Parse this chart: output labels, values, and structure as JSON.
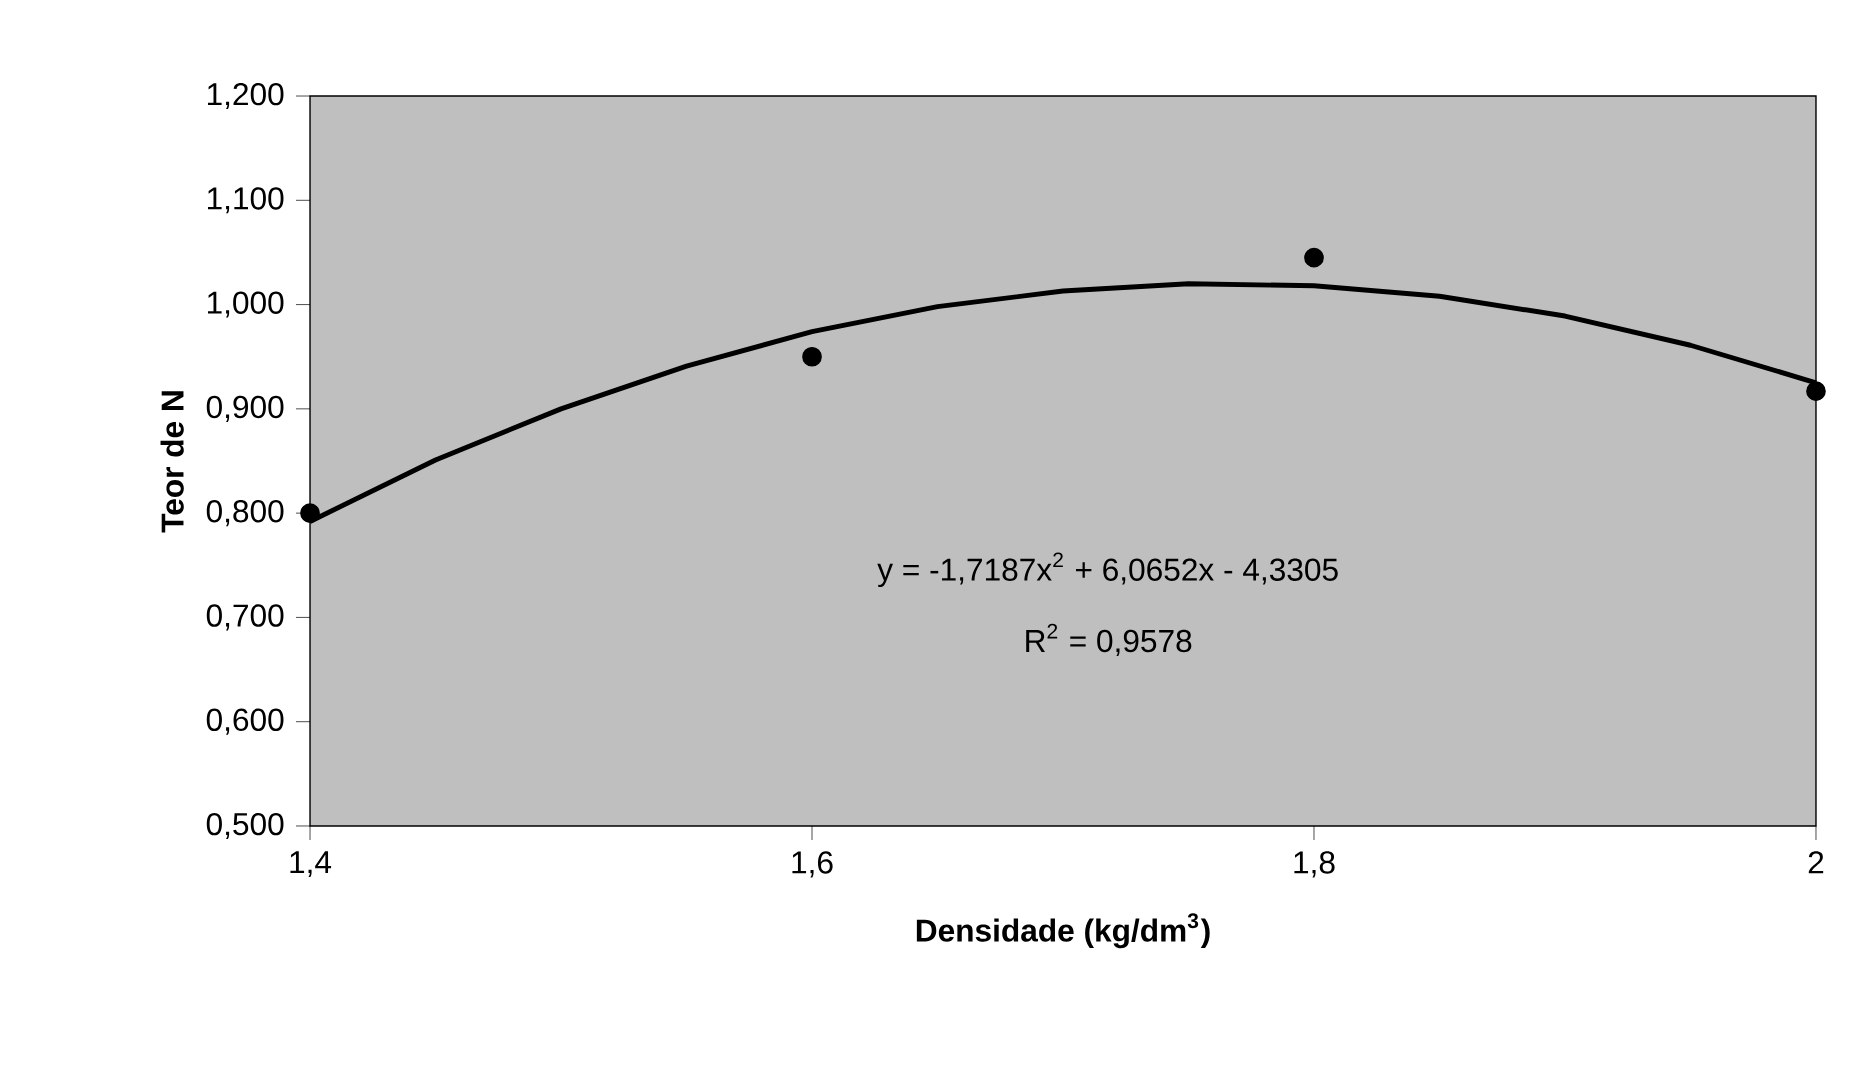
{
  "chart_data": {
    "type": "scatter",
    "xlabel": "Densidade (kg/dm$^{3}$)",
    "ylabel": "Teor de N",
    "xlim": [
      1.4,
      2.0
    ],
    "xticks": [
      {
        "value": 1.4,
        "label": "1,4"
      },
      {
        "value": 1.6,
        "label": "1,6"
      },
      {
        "value": 1.8,
        "label": "1,8"
      },
      {
        "value": 2.0,
        "label": "2"
      }
    ],
    "ylim": [
      0.5,
      1.2
    ],
    "yticks": [
      {
        "value": 0.5,
        "label": "0,500"
      },
      {
        "value": 0.6,
        "label": "0,600"
      },
      {
        "value": 0.7,
        "label": "0,700"
      },
      {
        "value": 0.8,
        "label": "0,800"
      },
      {
        "value": 0.9,
        "label": "0,900"
      },
      {
        "value": 1.0,
        "label": "1,000"
      },
      {
        "value": 1.1,
        "label": "1,100"
      },
      {
        "value": 1.2,
        "label": "1,200"
      }
    ],
    "series": [
      {
        "color": "#000000",
        "marker": "circle",
        "x": [
          1.4,
          1.6,
          1.8,
          2.0
        ],
        "values": [
          0.8,
          0.95,
          1.045,
          0.917
        ]
      },
      {
        "type": "line",
        "color": "#000000",
        "marker": "none",
        "line_style": "solid",
        "x": [
          1.4,
          1.45,
          1.5,
          1.55,
          1.6,
          1.65,
          1.7,
          1.75,
          1.8,
          1.85,
          1.9,
          1.95,
          2.0
        ],
        "values": [
          0.792,
          0.851,
          0.9,
          0.941,
          0.974,
          0.998,
          1.013,
          1.02,
          1.018,
          1.008,
          0.989,
          0.961,
          0.925
        ]
      }
    ],
    "annotations": [
      "y = -1,7187x$^{2}$ + 6,0652x - 4,3305",
      "R$^{2}$ = 0,9578"
    ],
    "grid": false
  }
}
